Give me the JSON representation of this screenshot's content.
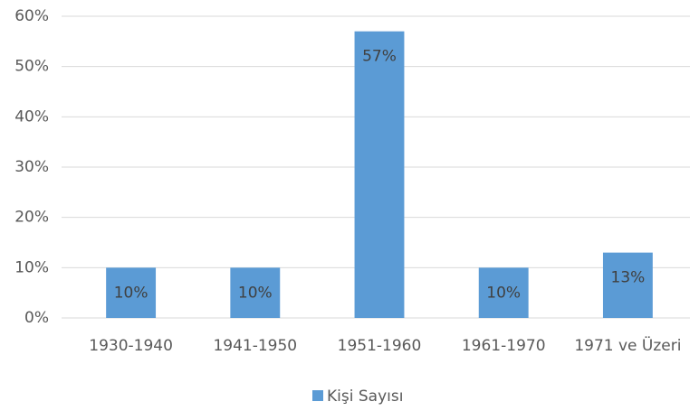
{
  "chart_data": {
    "type": "bar",
    "categories": [
      "1930-1940",
      "1941-1950",
      "1951-1960",
      "1961-1970",
      "1971 ve Üzeri"
    ],
    "series": [
      {
        "name": "Kişi Sayısı",
        "color": "#5b9bd5",
        "values": [
          10,
          10,
          57,
          10,
          13
        ],
        "value_labels": [
          "10%",
          "10%",
          "57%",
          "10%",
          "13%"
        ]
      }
    ],
    "ylim": [
      0,
      60
    ],
    "yticks": [
      {
        "value": 0,
        "label": "0%"
      },
      {
        "value": 10,
        "label": "10%"
      },
      {
        "value": 20,
        "label": "20%"
      },
      {
        "value": 30,
        "label": "30%"
      },
      {
        "value": 40,
        "label": "40%"
      },
      {
        "value": 50,
        "label": "50%"
      },
      {
        "value": 60,
        "label": "60%"
      }
    ],
    "grid": true,
    "legend": "bottom"
  }
}
